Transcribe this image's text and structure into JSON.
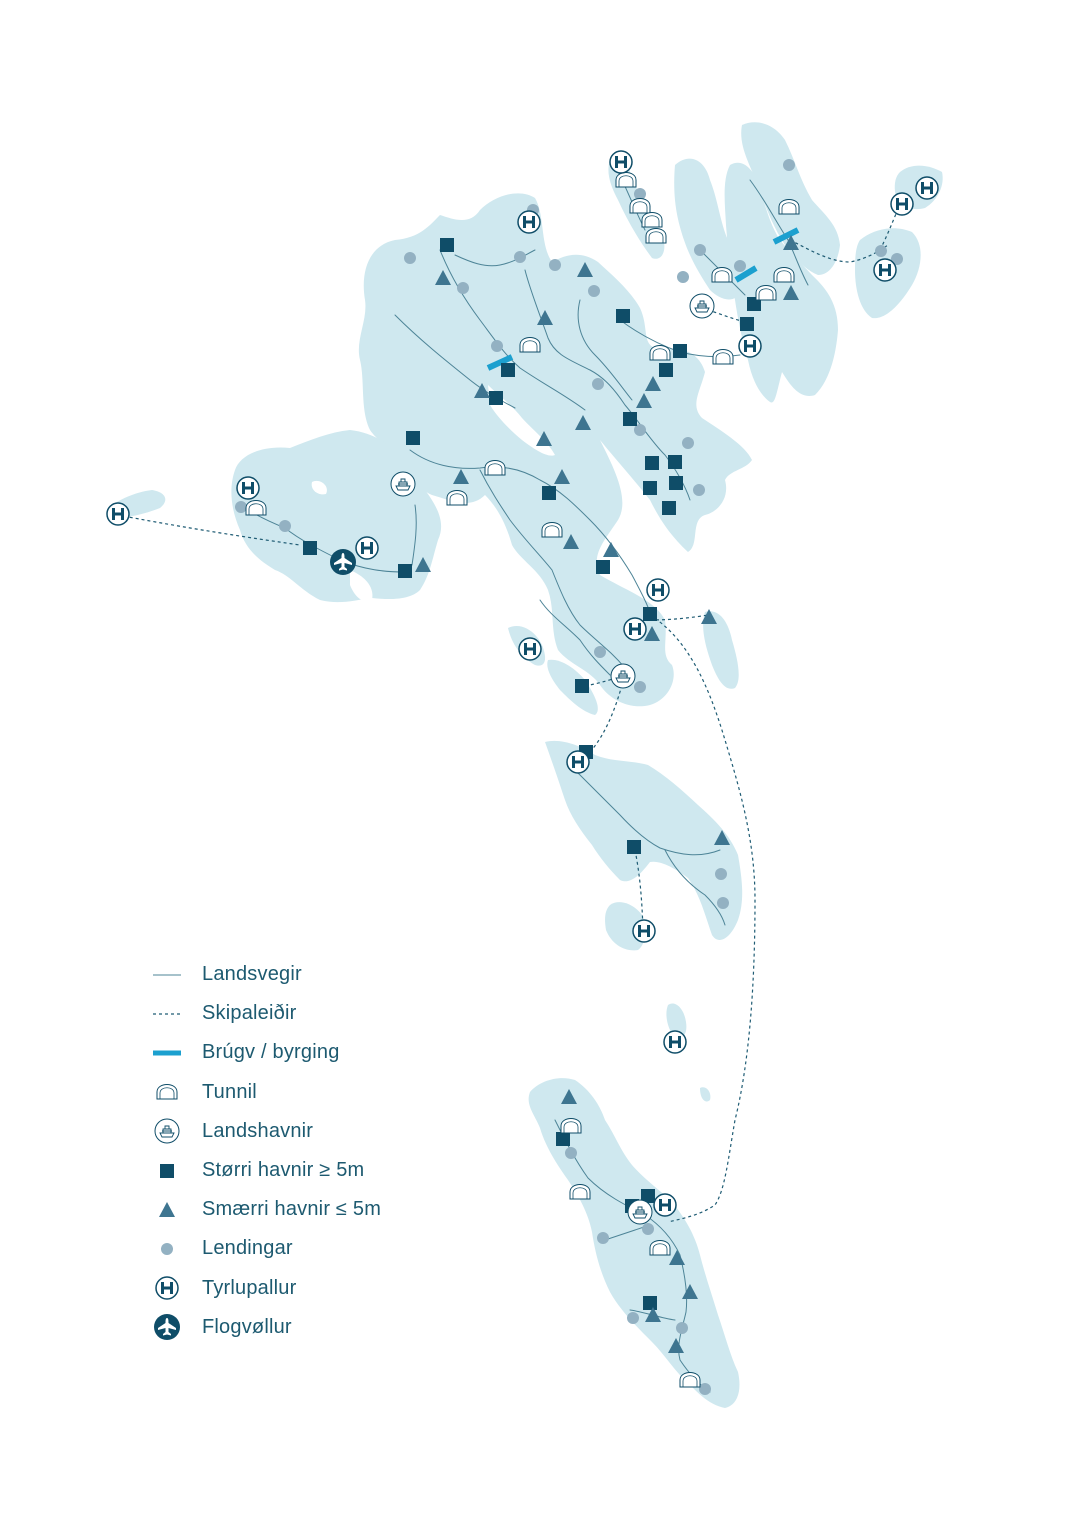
{
  "map": {
    "colors": {
      "land": "#cfe8ef",
      "road": "#4d8497",
      "ferry": "#1f5c74",
      "bridge": "#1ca0cf",
      "marker_dark": "#0f4d68",
      "marker_mid": "#3e7590",
      "marker_light": "#93b1c2"
    },
    "legend": [
      {
        "key": "road",
        "label": "Landsvegir",
        "icon": "thin-line"
      },
      {
        "key": "ferry",
        "label": "Skipaleiðir",
        "icon": "dashed-line"
      },
      {
        "key": "bridge",
        "label": "Brúgv / byrging",
        "icon": "thick-blue-bar"
      },
      {
        "key": "tunnel",
        "label": "Tunnil",
        "icon": "tunnel-arch-icon"
      },
      {
        "key": "national_port",
        "label": "Landshavnir",
        "icon": "ship-in-circle-icon"
      },
      {
        "key": "large_port",
        "label": "Størri havnir ≥ 5m",
        "icon": "filled-square-icon"
      },
      {
        "key": "small_port",
        "label": "Smærri havnir ≤ 5m",
        "icon": "filled-triangle-icon"
      },
      {
        "key": "landing",
        "label": "Lendingar",
        "icon": "dot-icon"
      },
      {
        "key": "helipad",
        "label": "Tyrlupallur",
        "icon": "helipad-h-icon"
      },
      {
        "key": "airport",
        "label": "Flogvøllur",
        "icon": "airplane-in-circle-icon"
      }
    ]
  }
}
